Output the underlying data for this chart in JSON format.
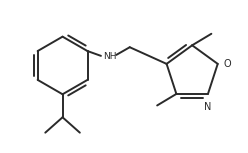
{
  "bg_color": "#ffffff",
  "line_color": "#2a2a2a",
  "line_width": 1.4,
  "figsize": [
    2.48,
    1.53
  ],
  "dpi": 100,
  "NH_label": "NH",
  "N_label": "N",
  "O_label": "O"
}
